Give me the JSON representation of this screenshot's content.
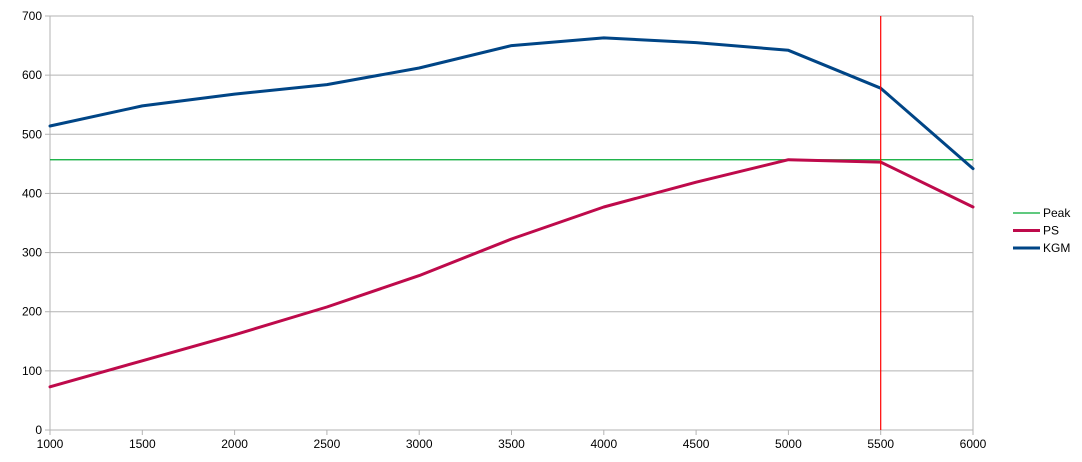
{
  "chart_data": {
    "type": "line",
    "title": "",
    "xlabel": "",
    "ylabel": "",
    "x": [
      1000,
      1500,
      2000,
      2500,
      3000,
      3500,
      4000,
      4500,
      5000,
      5500,
      6000
    ],
    "xlim": [
      1000,
      6000
    ],
    "ylim": [
      0,
      700
    ],
    "x_ticks": [
      "1000",
      "1500",
      "2000",
      "2500",
      "3000",
      "3500",
      "4000",
      "4500",
      "5000",
      "5500",
      "6000"
    ],
    "y_ticks": [
      "0",
      "100",
      "200",
      "300",
      "400",
      "500",
      "600",
      "700"
    ],
    "grid": "horizontal",
    "legend_position": "right",
    "series": [
      {
        "name": "Peak",
        "color": "#00a933",
        "type": "hline",
        "y": 457
      },
      {
        "name": "PS",
        "color": "#be0a4b",
        "values": [
          73,
          117,
          161,
          208,
          261,
          323,
          377,
          419,
          457,
          453,
          377
        ]
      },
      {
        "name": "KGM",
        "color": "#004586",
        "values": [
          514,
          548,
          568,
          584,
          612,
          650,
          663,
          655,
          642,
          578,
          442
        ]
      }
    ],
    "annotations": [
      {
        "type": "vline",
        "x": 5500,
        "color": "#ff0000"
      }
    ]
  }
}
